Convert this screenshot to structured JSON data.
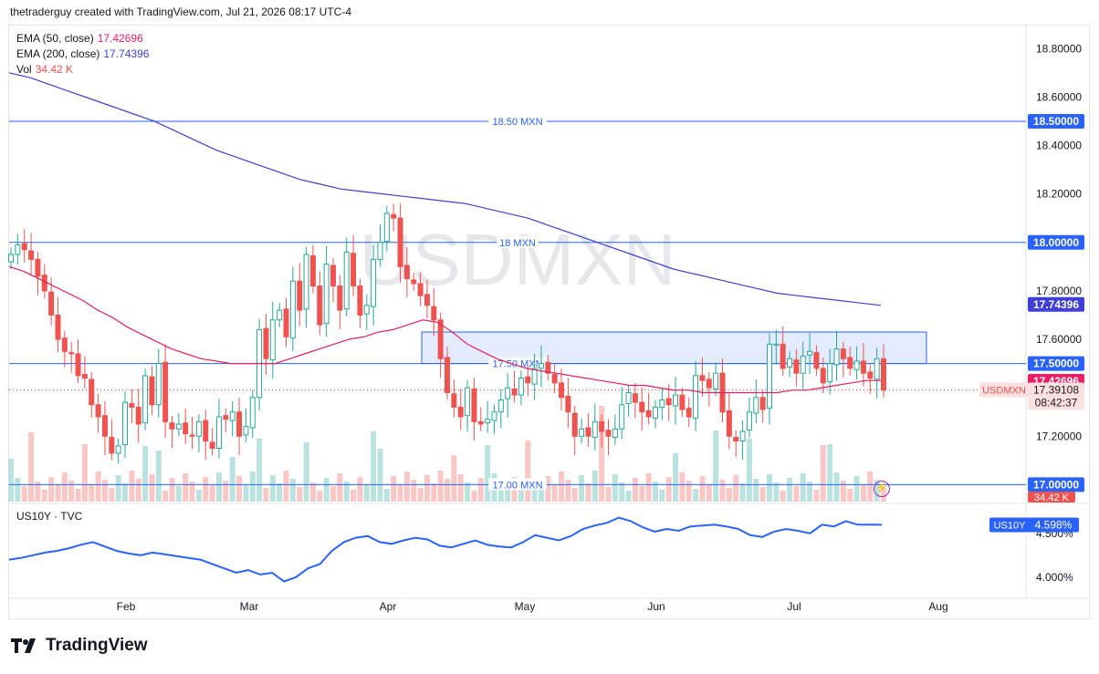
{
  "header": {
    "caption": "thetraderguy created with TradingView.com, Jul 21, 2026 08:17 UTC-4"
  },
  "legend": {
    "ema50_label": "EMA (50, close)",
    "ema50_value": "17.42696",
    "ema200_label": "EMA (200, close)",
    "ema200_value": "17.74396",
    "vol_label": "Vol",
    "vol_value": "34.42 K",
    "us10y_label": "US10Y · TVC"
  },
  "watermark": "USDMXN",
  "colors": {
    "up": "#26a69a",
    "down": "#ef5350",
    "ema50": "#e91e63",
    "ema200": "#3f3fd6",
    "hline": "#2962ff",
    "us10y": "#2962ff",
    "box_fill": "#e3ebff"
  },
  "levels": [
    {
      "label": "18.50 MXN",
      "value": 18.5,
      "tag": "18.50000"
    },
    {
      "label": "18 MXN",
      "value": 18.0,
      "tag": "18.00000"
    },
    {
      "label": "17.50 MXN",
      "value": 17.5,
      "tag": "17.50000"
    },
    {
      "label": "17.00 MXN",
      "value": 17.0,
      "tag": "17.00000"
    }
  ],
  "price_scale": {
    "ticks": [
      "18.80000",
      "18.60000",
      "18.40000",
      "18.20000",
      "18.00000",
      "17.80000",
      "17.60000",
      "17.20000",
      "17.00000"
    ],
    "range": [
      16.93,
      18.88
    ]
  },
  "tags": {
    "ema200": "17.74396",
    "ema50": "17.42696",
    "symbol": "USDMXN",
    "last": "17.39108",
    "countdown": "08:42:37",
    "vol": "34.42 K",
    "us10y_symbol": "US10Y",
    "us10y_value": "4.598%"
  },
  "us10y_scale": {
    "ticks": [
      "4.500%",
      "4.000%"
    ],
    "range": [
      3.82,
      4.78
    ]
  },
  "x_axis": {
    "labels": [
      "Feb",
      "Mar",
      "Apr",
      "May",
      "Jun",
      "Jul",
      "Aug"
    ]
  },
  "brand": "TradingView",
  "chart_data": [
    {
      "type": "candlestick",
      "title": "USDMXN",
      "box": {
        "low": 17.5,
        "high": 17.63,
        "start": "Apr 8",
        "end": "Jul 21"
      },
      "ohlc_close": [
        17.95,
        17.99,
        17.97,
        17.93,
        17.86,
        17.8,
        17.7,
        17.6,
        17.55,
        17.54,
        17.45,
        17.44,
        17.33,
        17.28,
        17.2,
        17.13,
        17.16,
        17.34,
        17.32,
        17.25,
        17.45,
        17.33,
        17.5,
        17.26,
        17.23,
        17.25,
        17.21,
        17.2,
        17.26,
        17.18,
        17.15,
        17.28,
        17.27,
        17.3,
        17.2,
        17.24,
        17.36,
        17.64,
        17.52,
        17.68,
        17.72,
        17.61,
        17.84,
        17.72,
        17.95,
        17.82,
        17.66,
        17.91,
        17.82,
        17.72,
        17.96,
        17.82,
        17.7,
        17.74,
        17.93,
        18.0,
        18.12,
        18.1,
        17.9,
        17.85,
        17.83,
        17.78,
        17.74,
        17.68,
        17.52,
        17.38,
        17.32,
        17.28,
        17.4,
        17.26,
        17.25,
        17.27,
        17.3,
        17.35,
        17.4,
        17.37,
        17.44,
        17.42,
        17.48,
        17.5,
        17.46,
        17.42,
        17.36,
        17.3,
        17.2,
        17.23,
        17.2,
        17.26,
        17.22,
        17.2,
        17.23,
        17.33,
        17.38,
        17.34,
        17.3,
        17.28,
        17.32,
        17.35,
        17.33,
        17.37,
        17.31,
        17.28,
        17.45,
        17.43,
        17.4,
        17.46,
        17.3,
        17.2,
        17.18,
        17.22,
        17.3,
        17.36,
        17.31,
        17.58,
        17.58,
        17.48,
        17.52,
        17.46,
        17.53,
        17.55,
        17.48,
        17.42,
        17.5,
        17.56,
        17.52,
        17.48,
        17.51,
        17.46,
        17.44,
        17.52,
        17.39
      ],
      "ema50": [
        17.9,
        17.88,
        17.85,
        17.82,
        17.79,
        17.76,
        17.72,
        17.69,
        17.65,
        17.62,
        17.59,
        17.56,
        17.54,
        17.52,
        17.51,
        17.5,
        17.5,
        17.5,
        17.5,
        17.52,
        17.54,
        17.56,
        17.58,
        17.6,
        17.61,
        17.63,
        17.64,
        17.66,
        17.68,
        17.67,
        17.63,
        17.58,
        17.55,
        17.52,
        17.5,
        17.48,
        17.47,
        17.46,
        17.45,
        17.44,
        17.43,
        17.42,
        17.41,
        17.41,
        17.4,
        17.39,
        17.39,
        17.38,
        17.38,
        17.38,
        17.38,
        17.38,
        17.38,
        17.39,
        17.39,
        17.4,
        17.41,
        17.42,
        17.43,
        17.43
      ],
      "ema200": [
        18.7,
        18.68,
        18.65,
        18.62,
        18.59,
        18.56,
        18.53,
        18.5,
        18.46,
        18.42,
        18.38,
        18.35,
        18.32,
        18.29,
        18.26,
        18.24,
        18.22,
        18.21,
        18.2,
        18.19,
        18.18,
        18.17,
        18.16,
        18.14,
        18.12,
        18.1,
        18.07,
        18.04,
        18.01,
        17.98,
        17.95,
        17.92,
        17.89,
        17.87,
        17.85,
        17.83,
        17.81,
        17.79,
        17.78,
        17.77,
        17.76,
        17.75,
        17.74
      ]
    },
    {
      "type": "line",
      "title": "US10Y · TVC",
      "values": [
        4.2,
        4.22,
        4.25,
        4.28,
        4.3,
        4.33,
        4.37,
        4.4,
        4.35,
        4.3,
        4.27,
        4.25,
        4.28,
        4.26,
        4.24,
        4.22,
        4.2,
        4.15,
        4.1,
        4.05,
        4.08,
        4.03,
        4.05,
        3.95,
        4.0,
        4.1,
        4.15,
        4.3,
        4.4,
        4.45,
        4.47,
        4.4,
        4.38,
        4.42,
        4.45,
        4.43,
        4.36,
        4.34,
        4.38,
        4.42,
        4.37,
        4.35,
        4.34,
        4.4,
        4.48,
        4.45,
        4.42,
        4.47,
        4.55,
        4.59,
        4.62,
        4.68,
        4.64,
        4.57,
        4.52,
        4.55,
        4.53,
        4.58,
        4.59,
        4.6,
        4.58,
        4.55,
        4.48,
        4.46,
        4.52,
        4.55,
        4.53,
        4.5,
        4.6,
        4.58,
        4.64,
        4.6,
        4.6,
        4.598
      ]
    }
  ]
}
